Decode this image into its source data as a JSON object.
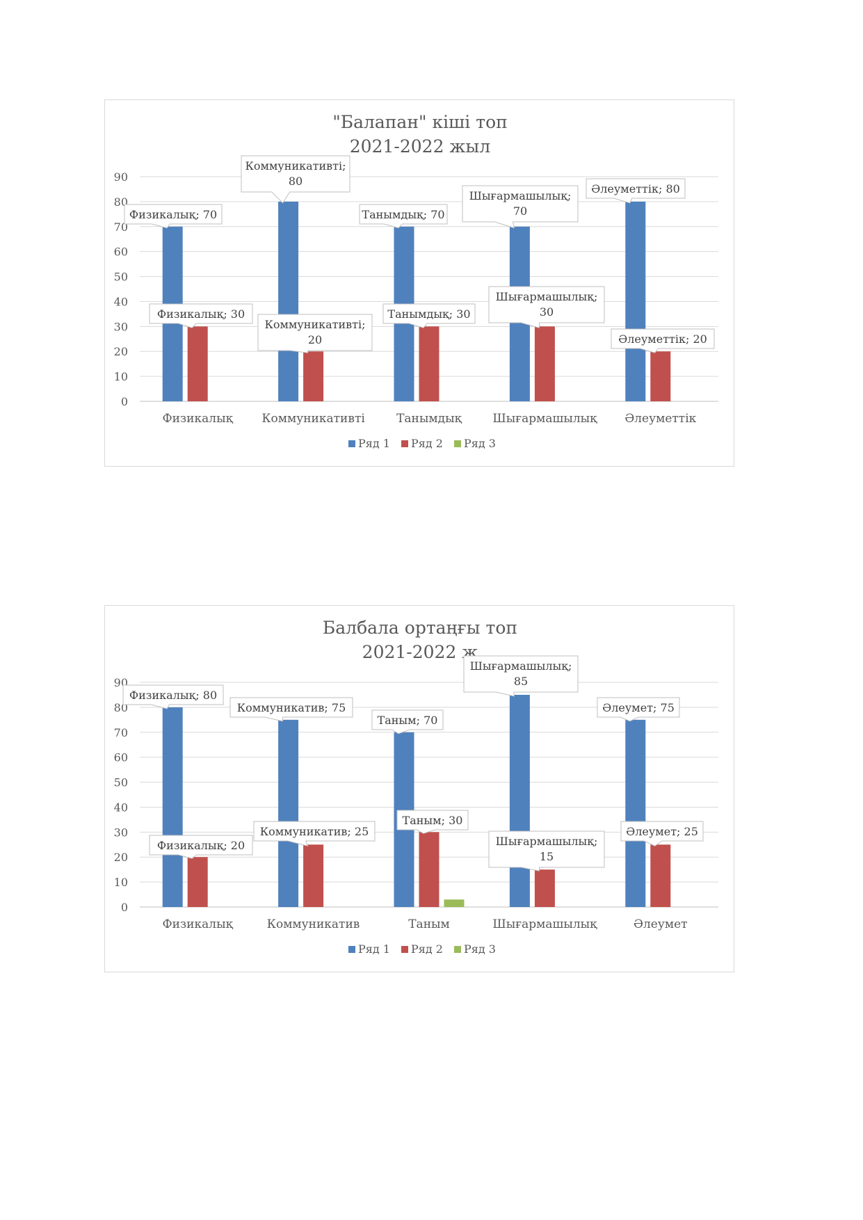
{
  "chart_data": [
    {
      "type": "bar",
      "title": [
        "\"Балапан\" кіші топ",
        "2021-2022 жыл"
      ],
      "categories": [
        "Физикалық",
        "Коммуникативті",
        "Танымдық",
        "Шығармашылық",
        "Әлеуметтік"
      ],
      "ylim": [
        0,
        90
      ],
      "yticks": [
        0,
        10,
        20,
        30,
        40,
        50,
        60,
        70,
        80,
        90
      ],
      "grid": true,
      "legend_position": "bottom",
      "series": [
        {
          "name": "Ряд 1",
          "color": "#4f81bd",
          "values": [
            70,
            80,
            70,
            70,
            80
          ]
        },
        {
          "name": "Ряд 2",
          "color": "#c0504d",
          "values": [
            30,
            20,
            30,
            30,
            20
          ]
        },
        {
          "name": "Ряд 3",
          "color": "#9bbb59",
          "values": [
            0,
            0,
            0,
            0,
            0
          ]
        }
      ],
      "data_labels": [
        [
          "Физикалық; 70",
          "Коммуникативті; 80",
          "Танымдық; 70",
          "Шығармашылық; 70",
          "Әлеуметтік; 80"
        ],
        [
          "Физикалық; 30",
          "Коммуникативті; 20",
          "Танымдық; 30",
          "Шығармашылық; 30",
          "Әлеуметтік; 20"
        ],
        [
          "",
          "",
          "",
          "",
          ""
        ]
      ]
    },
    {
      "type": "bar",
      "title": [
        "Балбала ортаңғы топ",
        "2021-2022 ж"
      ],
      "categories": [
        "Физикалық",
        "Коммуникатив",
        "Таным",
        "Шығармашылық",
        "Әлеумет"
      ],
      "ylim": [
        0,
        90
      ],
      "yticks": [
        0,
        10,
        20,
        30,
        40,
        50,
        60,
        70,
        80,
        90
      ],
      "grid": true,
      "legend_position": "bottom",
      "series": [
        {
          "name": "Ряд 1",
          "color": "#4f81bd",
          "values": [
            80,
            75,
            70,
            85,
            75
          ]
        },
        {
          "name": "Ряд 2",
          "color": "#c0504d",
          "values": [
            20,
            25,
            30,
            15,
            25
          ]
        },
        {
          "name": "Ряд 3",
          "color": "#9bbb59",
          "values": [
            0,
            0,
            3,
            0,
            0
          ]
        }
      ],
      "data_labels": [
        [
          "Физикалық; 80",
          "Коммуникатив; 75",
          "Таным; 70",
          "Шығармашылық; 85",
          "Әлеумет; 75"
        ],
        [
          "Физикалық; 20",
          "Коммуникатив; 25",
          "Таным; 30",
          "Шығармашылық; 15",
          "Әлеумет; 25"
        ],
        [
          "",
          "",
          "",
          "",
          ""
        ]
      ]
    }
  ]
}
